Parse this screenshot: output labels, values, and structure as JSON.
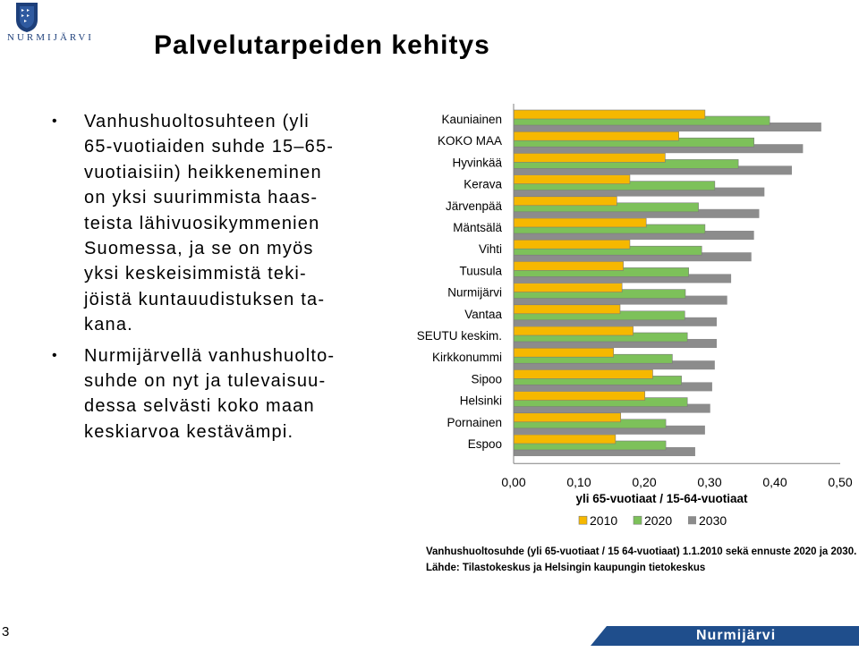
{
  "logo": {
    "wordmark": "NURMIJÄRVI"
  },
  "title": "Palvelutarpeiden kehitys",
  "bullets": [
    "Vanhushuoltosuhteen (yli\n65-vuotiaiden suhde 15–65-\nvuotiaisiin) heikkeneminen\non yksi suurimmista haas-\nteista lähivuosikymmenien\nSuomessa, ja se on myös\nyksi keskeisimmistä teki-\njöistä kuntauudistuksen ta-\nkana.",
    "Nurmijärvellä vanhushuolto-\nsuhde on nyt ja tulevaisuu-\ndessa selvästi koko maan\nkeskiarvoa kestävämpi."
  ],
  "chart_data": {
    "type": "bar",
    "orientation": "horizontal",
    "categories": [
      "Kauniainen",
      "KOKO MAA",
      "Hyvinkää",
      "Kerava",
      "Järvenpää",
      "Mäntsälä",
      "Vihti",
      "Tuusula",
      "Nurmijärvi",
      "Vantaa",
      "SEUTU keskim.",
      "Kirkkonummi",
      "Sipoo",
      "Helsinki",
      "Pornainen",
      "Espoo"
    ],
    "series": [
      {
        "name": "2010",
        "color": "#f6b800",
        "values": [
          0.293,
          0.253,
          0.232,
          0.178,
          0.158,
          0.203,
          0.178,
          0.168,
          0.166,
          0.163,
          0.183,
          0.153,
          0.213,
          0.201,
          0.164,
          0.156
        ]
      },
      {
        "name": "2020",
        "color": "#7dc15a",
        "values": [
          0.392,
          0.368,
          0.344,
          0.308,
          0.283,
          0.293,
          0.288,
          0.268,
          0.263,
          0.262,
          0.266,
          0.243,
          0.257,
          0.266,
          0.233,
          0.233
        ]
      },
      {
        "name": "2030",
        "color": "#8c8c8c",
        "values": [
          0.471,
          0.443,
          0.426,
          0.384,
          0.376,
          0.368,
          0.364,
          0.333,
          0.327,
          0.311,
          0.311,
          0.308,
          0.304,
          0.301,
          0.293,
          0.278
        ]
      }
    ],
    "xlabel": "yli 65-vuotiaat / 15-64-vuotiaat",
    "xlim": [
      0,
      0.5
    ],
    "xticks": [
      "0,00",
      "0,10",
      "0,20",
      "0,30",
      "0,40",
      "0,50"
    ],
    "legend_position": "bottom",
    "grid": false
  },
  "caption": "Vanhushuoltosuhde (yli 65-vuotiaat / 15 64-vuotiaat) 1.1.2010 sekä ennuste 2020 ja 2030. Lähde: Tilastokeskus ja Helsingin kaupungin tietokeskus",
  "slide_number": "3",
  "footer_brand": "Nurmijärvi",
  "colors": {
    "brand_blue": "#1d3f7a",
    "footer_band": "#1f4e8c"
  }
}
